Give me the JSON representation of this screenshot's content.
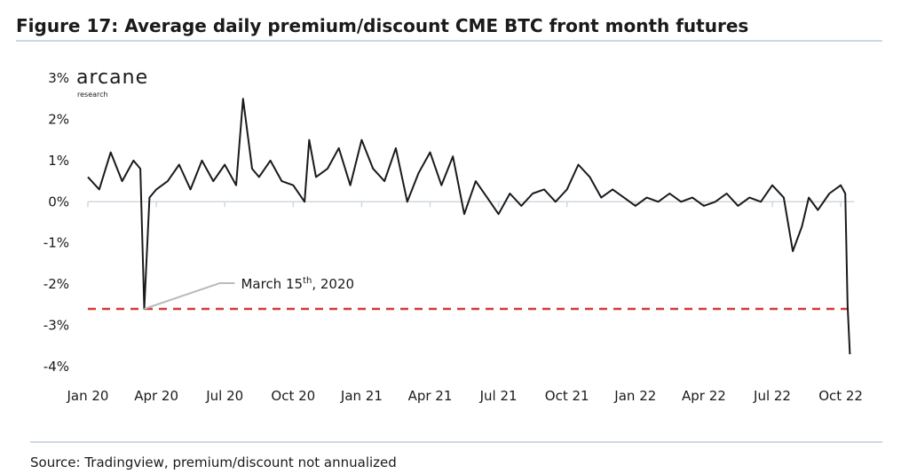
{
  "chart_data": {
    "type": "line",
    "title": "Figure 17: Average daily premium/discount CME BTC front month futures",
    "logo": {
      "name": "arcane",
      "sub": "research"
    },
    "source": "Source: Tradingview, premium/discount not annualized",
    "color": "#1a1a1a",
    "x": [
      0,
      0.5,
      1,
      1.5,
      2,
      2.3,
      2.47,
      2.7,
      3,
      3.5,
      4,
      4.5,
      5,
      5.5,
      6,
      6.5,
      6.8,
      7.2,
      7.5,
      8,
      8.5,
      9,
      9.5,
      9.7,
      10,
      10.5,
      11,
      11.5,
      12,
      12.5,
      13,
      13.5,
      14,
      14.5,
      15,
      15.5,
      16,
      16.5,
      17,
      17.5,
      18,
      18.5,
      19,
      19.5,
      20,
      20.5,
      21,
      21.5,
      22,
      22.5,
      23,
      23.5,
      24,
      24.5,
      25,
      25.5,
      26,
      26.5,
      27,
      27.5,
      28,
      28.5,
      29,
      29.5,
      30,
      30.5,
      30.9,
      31.3,
      31.6,
      32,
      32.5,
      33,
      33.2,
      33.3,
      33.4
    ],
    "values": [
      0.6,
      0.3,
      1.2,
      0.5,
      1.0,
      0.8,
      -2.6,
      0.1,
      0.3,
      0.5,
      0.9,
      0.3,
      1.0,
      0.5,
      0.9,
      0.4,
      2.5,
      0.8,
      0.6,
      1.0,
      0.5,
      0.4,
      0.0,
      1.5,
      0.6,
      0.8,
      1.3,
      0.4,
      1.5,
      0.8,
      0.5,
      1.3,
      0.0,
      0.7,
      1.2,
      0.4,
      1.1,
      -0.3,
      0.5,
      0.1,
      -0.3,
      0.2,
      -0.1,
      0.2,
      0.3,
      0.0,
      0.3,
      0.9,
      0.6,
      0.1,
      0.3,
      0.1,
      -0.1,
      0.1,
      0.0,
      0.2,
      0.0,
      0.1,
      -0.1,
      0.0,
      0.2,
      -0.1,
      0.1,
      0.0,
      0.4,
      0.1,
      -1.2,
      -0.6,
      0.1,
      -0.2,
      0.2,
      0.4,
      0.2,
      -2.5,
      -3.7
    ],
    "xlim": [
      0,
      33.6
    ],
    "xticks": [
      {
        "value": 0,
        "label": "Jan 20"
      },
      {
        "value": 3,
        "label": "Apr 20"
      },
      {
        "value": 6,
        "label": "Jul 20"
      },
      {
        "value": 9,
        "label": "Oct 20"
      },
      {
        "value": 12,
        "label": "Jan 21"
      },
      {
        "value": 15,
        "label": "Apr 21"
      },
      {
        "value": 18,
        "label": "Jul 21"
      },
      {
        "value": 21,
        "label": "Oct 21"
      },
      {
        "value": 24,
        "label": "Jan 22"
      },
      {
        "value": 27,
        "label": "Apr 22"
      },
      {
        "value": 30,
        "label": "Jul 22"
      },
      {
        "value": 33,
        "label": "Oct 22"
      }
    ],
    "ylim": [
      -4,
      3
    ],
    "yticks": [
      {
        "value": 3,
        "label": "3%"
      },
      {
        "value": 2,
        "label": "2%"
      },
      {
        "value": 1,
        "label": "1%"
      },
      {
        "value": 0,
        "label": "0%"
      },
      {
        "value": -1,
        "label": "-1%"
      },
      {
        "value": -2,
        "label": "-2%"
      },
      {
        "value": -3,
        "label": "-3%"
      },
      {
        "value": -4,
        "label": "-4%"
      }
    ],
    "grid": false,
    "reference_line": {
      "value": -2.6,
      "color": "#d23a3a"
    },
    "annotation": {
      "text": "March 15",
      "sup": "th",
      "tail": ", 2020",
      "point": 6
    }
  }
}
